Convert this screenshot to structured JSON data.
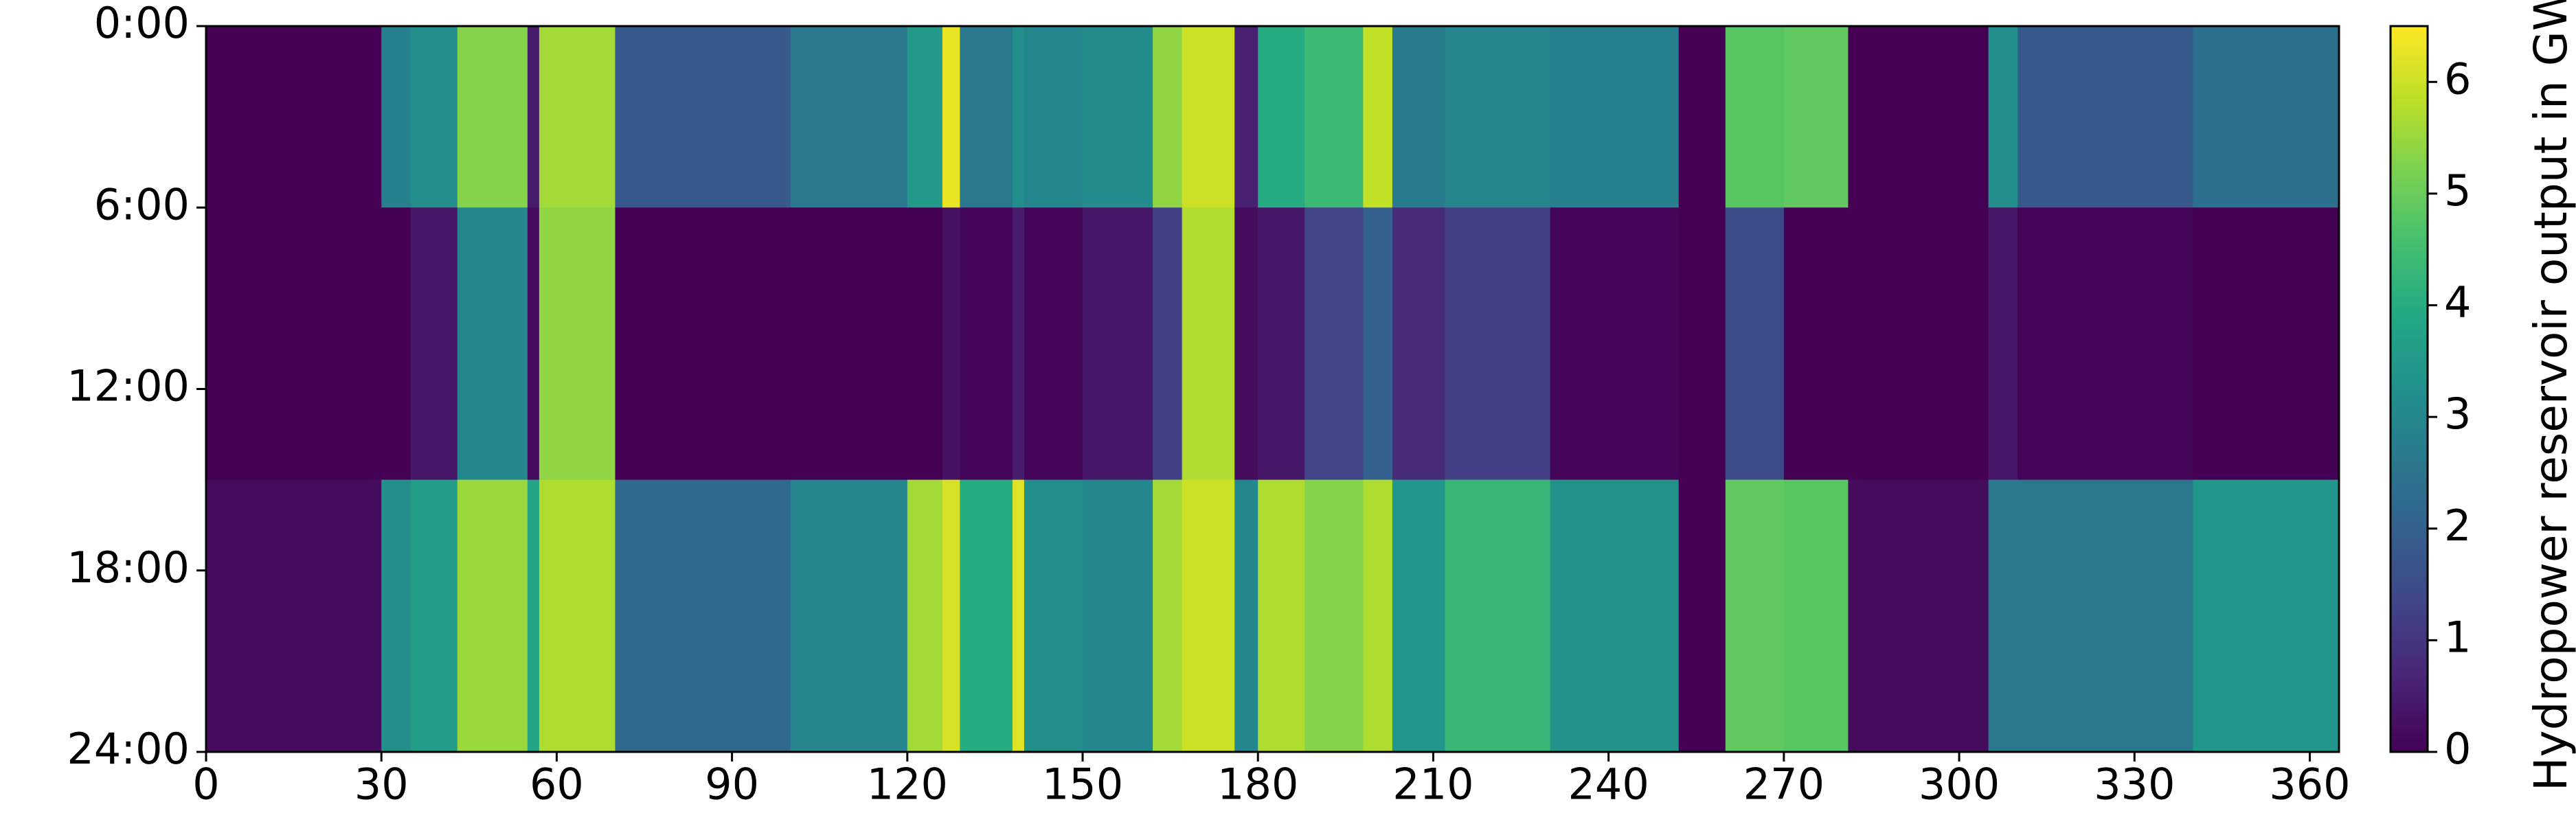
{
  "chart_data": {
    "type": "heatmap",
    "title": "",
    "xlabel": "",
    "ylabel": "",
    "colorbar_label": "Hydropower reservoir output in GW",
    "colormap": "viridis",
    "x_unit": "day of year",
    "xlim": [
      0,
      365
    ],
    "xticks": [
      0,
      30,
      60,
      90,
      120,
      150,
      180,
      210,
      240,
      270,
      300,
      330,
      360
    ],
    "xtick_labels": [
      "0",
      "30",
      "60",
      "90",
      "120",
      "150",
      "180",
      "210",
      "240",
      "270",
      "300",
      "330",
      "360"
    ],
    "ylim_hours": [
      0,
      24
    ],
    "y_inverted": true,
    "yticks_hours": [
      0,
      6,
      12,
      18,
      24
    ],
    "ytick_labels": [
      "0:00",
      "6:00",
      "12:00",
      "18:00",
      "24:00"
    ],
    "clim": [
      0,
      6.5
    ],
    "cbar_ticks": [
      0,
      1,
      2,
      3,
      4,
      5,
      6
    ],
    "cbar_tick_labels": [
      "0",
      "1",
      "2",
      "3",
      "4",
      "5",
      "6"
    ],
    "hour_bands": [
      {
        "name": "night",
        "from_hour": 0,
        "to_hour": 6
      },
      {
        "name": "day",
        "from_hour": 6,
        "to_hour": 15
      },
      {
        "name": "evening",
        "from_hour": 15,
        "to_hour": 24
      }
    ],
    "segments": [
      {
        "from_day": 0,
        "to_day": 30,
        "night": 0,
        "day": 0,
        "evening": 0.2
      },
      {
        "from_day": 30,
        "to_day": 35,
        "night": 2.8,
        "day": 0,
        "evening": 3.2
      },
      {
        "from_day": 35,
        "to_day": 43,
        "night": 3.2,
        "day": 0.4,
        "evening": 3.6
      },
      {
        "from_day": 43,
        "to_day": 55,
        "night": 5.3,
        "day": 3.0,
        "evening": 5.5
      },
      {
        "from_day": 55,
        "to_day": 57,
        "night": 0.5,
        "day": 0.2,
        "evening": 3.8
      },
      {
        "from_day": 57,
        "to_day": 70,
        "night": 5.6,
        "day": 5.4,
        "evening": 5.7
      },
      {
        "from_day": 70,
        "to_day": 100,
        "night": 1.8,
        "day": 0,
        "evening": 2.2
      },
      {
        "from_day": 100,
        "to_day": 120,
        "night": 2.6,
        "day": 0,
        "evening": 2.9
      },
      {
        "from_day": 120,
        "to_day": 126,
        "night": 3.5,
        "day": 0,
        "evening": 5.6
      },
      {
        "from_day": 126,
        "to_day": 129,
        "night": 6.3,
        "day": 0.3,
        "evening": 6.1
      },
      {
        "from_day": 129,
        "to_day": 138,
        "night": 2.6,
        "day": 0.1,
        "evening": 4.0
      },
      {
        "from_day": 138,
        "to_day": 140,
        "night": 3.2,
        "day": 0.5,
        "evening": 6.2
      },
      {
        "from_day": 140,
        "to_day": 150,
        "night": 3.0,
        "day": 0.1,
        "evening": 3.2
      },
      {
        "from_day": 150,
        "to_day": 162,
        "night": 3.1,
        "day": 0.4,
        "evening": 3.0
      },
      {
        "from_day": 162,
        "to_day": 167,
        "night": 5.4,
        "day": 1.2,
        "evening": 5.6
      },
      {
        "from_day": 167,
        "to_day": 176,
        "night": 6.0,
        "day": 5.7,
        "evening": 6.0
      },
      {
        "from_day": 176,
        "to_day": 180,
        "night": 0.6,
        "day": 0.2,
        "evening": 3.0
      },
      {
        "from_day": 180,
        "to_day": 188,
        "night": 4.0,
        "day": 0.4,
        "evening": 5.7
      },
      {
        "from_day": 188,
        "to_day": 198,
        "night": 4.4,
        "day": 1.3,
        "evening": 5.3
      },
      {
        "from_day": 198,
        "to_day": 203,
        "night": 5.9,
        "day": 2.0,
        "evening": 5.7
      },
      {
        "from_day": 203,
        "to_day": 212,
        "night": 2.7,
        "day": 0.8,
        "evening": 3.4
      },
      {
        "from_day": 212,
        "to_day": 230,
        "night": 2.9,
        "day": 1.2,
        "evening": 4.3
      },
      {
        "from_day": 230,
        "to_day": 252,
        "night": 2.8,
        "day": 0.1,
        "evening": 3.3
      },
      {
        "from_day": 252,
        "to_day": 260,
        "night": 0,
        "day": 0,
        "evening": 0
      },
      {
        "from_day": 260,
        "to_day": 270,
        "night": 4.8,
        "day": 1.5,
        "evening": 4.9
      },
      {
        "from_day": 270,
        "to_day": 281,
        "night": 4.9,
        "day": 0,
        "evening": 4.8
      },
      {
        "from_day": 281,
        "to_day": 305,
        "night": 0,
        "day": 0,
        "evening": 0.2
      },
      {
        "from_day": 305,
        "to_day": 310,
        "night": 3.2,
        "day": 0.4,
        "evening": 2.6
      },
      {
        "from_day": 310,
        "to_day": 340,
        "night": 1.8,
        "day": 0.1,
        "evening": 2.6
      },
      {
        "from_day": 340,
        "to_day": 365,
        "night": 2.4,
        "day": 0,
        "evening": 3.4
      }
    ]
  }
}
